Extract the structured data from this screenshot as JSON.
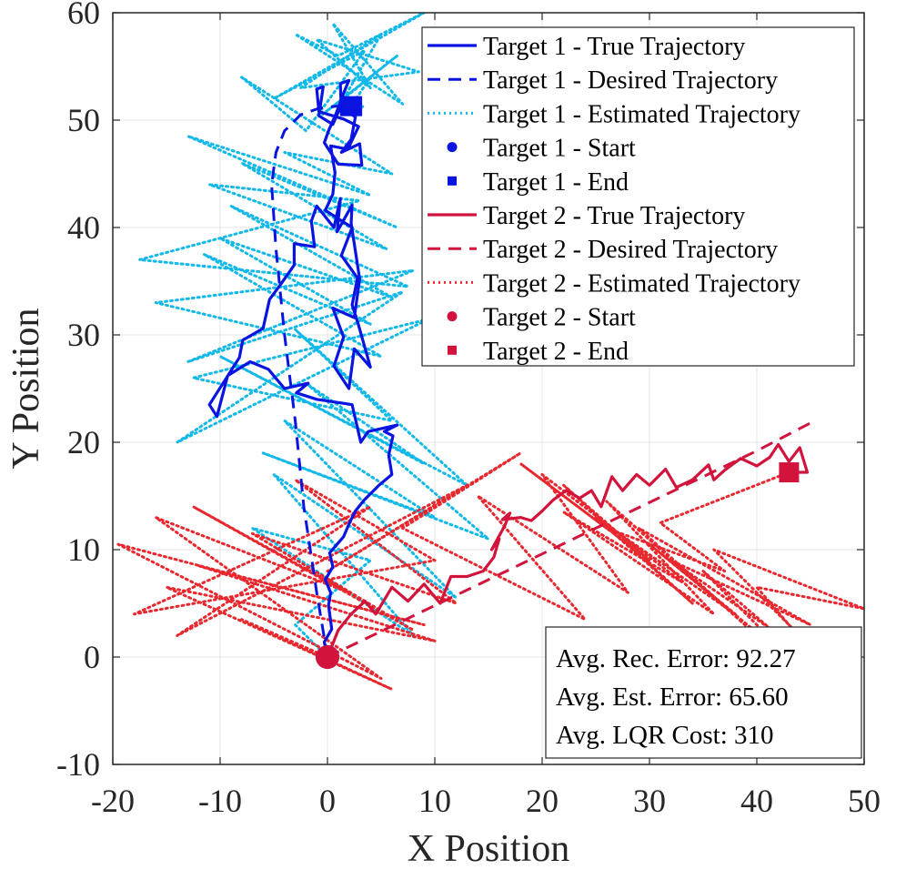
{
  "chart_data": {
    "type": "line",
    "xlabel": "X Position",
    "ylabel": "Y Position",
    "xlim": [
      -20,
      50
    ],
    "ylim": [
      -10,
      60
    ],
    "xticks": [
      -20,
      -10,
      0,
      10,
      20,
      30,
      40,
      50
    ],
    "yticks": [
      -10,
      0,
      10,
      20,
      30,
      40,
      50,
      60
    ],
    "grid": true,
    "legend_location": "top-right",
    "colors": {
      "target1": "#0a14e0",
      "target1_estimated": "#12b8e8",
      "target2": "#d2143c",
      "target2_estimated": "#e8282e"
    },
    "series": [
      {
        "name": "Target 1 - True Trajectory",
        "style": "solid",
        "color": "#0a14e0",
        "x": [
          0,
          -0.3,
          0.4,
          0.1,
          0.3,
          -0.2,
          0.5,
          0.2,
          1.5,
          2.1,
          2.6,
          3.4,
          4.8,
          6.0,
          5.7,
          6.1,
          5.3,
          6.5,
          3.8,
          3.1,
          2.3,
          -1.0,
          -2.9,
          -1.8,
          -4.0,
          -5.5,
          -7.2,
          -9.3,
          -10.3,
          -11.0,
          -8.2,
          -7.9,
          -6.0,
          -5.4,
          -4.3,
          -3.1,
          -3.1,
          -1.2,
          -1.5,
          -1.0,
          0.6,
          1.2,
          0.9,
          2.3,
          2.2,
          3.0,
          2.5,
          0.5,
          1.5,
          0.6,
          2.0,
          2.5,
          4.0,
          2.9,
          2.3,
          2.8,
          1.3,
          2.3,
          -0.2,
          0.5,
          0.7,
          0.3,
          1.9,
          2.9,
          1.5,
          -0.8,
          -1.0,
          -0.4,
          -0.8,
          0.5,
          1.2,
          2.6,
          2.2,
          1.3,
          3.0,
          3.2,
          1.0,
          -0.3,
          0.1,
          0.8,
          1.5,
          2.0,
          1.2,
          1.3,
          2.9,
          2.3
        ],
        "y": [
          0,
          1.4,
          2.6,
          4.8,
          6.0,
          7.2,
          8.4,
          9.7,
          11.2,
          12.6,
          13.6,
          14.6,
          16.0,
          17.0,
          18.8,
          20.6,
          21.0,
          21.6,
          21.0,
          20.0,
          23.5,
          24.0,
          24.6,
          25.5,
          25.0,
          26.8,
          27.5,
          26.2,
          22.4,
          23.5,
          27.9,
          29.5,
          30.6,
          33.3,
          34.8,
          36.5,
          38.5,
          38.2,
          40.6,
          42.0,
          40.0,
          42.7,
          39.6,
          42.1,
          40.4,
          35.2,
          31.6,
          32.5,
          29.8,
          27.1,
          25.0,
          28.7,
          27.0,
          30.9,
          32.8,
          35.3,
          37.4,
          40.0,
          41.6,
          43.1,
          45.1,
          47.6,
          47.3,
          49.4,
          50.1,
          50.8,
          52.9,
          53.1,
          50.4,
          49.6,
          51.2,
          50.3,
          48.2,
          47.0,
          47.8,
          45.8,
          45.9,
          47.9,
          49.0,
          50.6,
          52.5,
          53.7,
          53.4,
          50.5,
          51.4,
          51.3
        ]
      },
      {
        "name": "Target 1 - Desired Trajectory",
        "style": "dashed",
        "color": "#0a14e0",
        "x": [
          0,
          -1.0,
          -2.2,
          -3.0,
          -4.0,
          -4.8,
          -5.2,
          -4.8,
          -4.0,
          -2.5,
          -0.8,
          0.8,
          2.3
        ],
        "y": [
          0,
          6,
          14,
          22,
          30,
          38,
          44,
          47,
          49,
          50.5,
          51.1,
          51.3,
          51.3
        ]
      },
      {
        "name": "Target 1 - Estimated Trajectory",
        "style": "dotted",
        "color": "#12b8e8",
        "x": [
          0,
          -3.0,
          4.0,
          -7.0,
          8.0,
          -5.0,
          12.0,
          -4.0,
          10.0,
          -6.0,
          15.0,
          -2.0,
          9.0,
          -10.0,
          13.0,
          -3.0,
          6.0,
          -12.5,
          9.5,
          -14.0,
          7.0,
          -13.0,
          8.0,
          -16.0,
          5.0,
          -11.5,
          4.0,
          -10.0,
          6.0,
          -9.0,
          7.5,
          -17.5,
          3.0,
          -11.0,
          5.5,
          -8.0,
          6.5,
          -13.0,
          4.0,
          -4.0,
          6.0,
          -8.0,
          -2.0,
          3.5,
          -5.0,
          9.0,
          1.0,
          -3.0,
          7.0,
          0.5,
          4.0,
          -1.0,
          8.5,
          -2.5,
          5.0,
          1.5,
          6.5,
          -0.5,
          4.0,
          2.0,
          3.5
        ],
        "y": [
          0,
          3.0,
          9.0,
          12.0,
          2.0,
          17.0,
          5.5,
          22.0,
          13.0,
          19.0,
          11.0,
          25.5,
          18.0,
          28.0,
          16.0,
          30.5,
          22.0,
          26.0,
          31.5,
          20.0,
          34.0,
          27.5,
          36.0,
          33.0,
          28.0,
          37.5,
          31.0,
          39.0,
          33.5,
          42.0,
          34.5,
          37.0,
          42.5,
          44.0,
          38.0,
          46.0,
          40.0,
          48.5,
          43.0,
          47.0,
          45.0,
          54.0,
          49.0,
          56.5,
          52.0,
          60.0,
          56.0,
          58.0,
          51.5,
          59.0,
          53.0,
          57.5,
          54.5,
          53.0,
          58.0,
          52.0,
          56.0,
          50.5,
          54.0,
          51.0,
          51.3
        ]
      },
      {
        "name": "Target 1 - Start",
        "style": "marker-circle",
        "color": "#0a14e0",
        "x": [
          0
        ],
        "y": [
          0
        ]
      },
      {
        "name": "Target 1 - End",
        "style": "marker-square",
        "color": "#0a14e0",
        "x": [
          2.3
        ],
        "y": [
          51.3
        ]
      },
      {
        "name": "Target 2 - True Trajectory",
        "style": "solid",
        "color": "#d2143c",
        "x": [
          0,
          1.0,
          2.2,
          3.5,
          4.5,
          6.0,
          7.5,
          9.0,
          10.5,
          11.5,
          13.0,
          14.5,
          15.5,
          16.0,
          15.3,
          16.5,
          17.0,
          16.3,
          18.0,
          19.0,
          20.0,
          21.0,
          22.2,
          23.5,
          24.6,
          25.5,
          26.5,
          27.5,
          28.8,
          30.0,
          31.5,
          32.5,
          34.0,
          35.5,
          36.0,
          37.0,
          38.5,
          40.0,
          41.2,
          42.0,
          43.0,
          44.0,
          44.7,
          43.0
        ],
        "y": [
          0,
          2.5,
          4.0,
          5.2,
          4.0,
          6.5,
          5.2,
          6.8,
          5.0,
          7.5,
          7.5,
          8.0,
          9.3,
          11.0,
          10.0,
          12.2,
          13.4,
          12.8,
          13.0,
          12.7,
          13.6,
          14.6,
          15.5,
          14.8,
          15.5,
          14.0,
          16.8,
          15.5,
          17.0,
          16.0,
          17.5,
          15.8,
          16.5,
          17.9,
          16.5,
          17.4,
          18.5,
          17.8,
          18.6,
          19.8,
          18.2,
          19.5,
          17.2,
          17.2
        ]
      },
      {
        "name": "Target 2 - Desired Trajectory",
        "style": "dashed",
        "color": "#d2143c",
        "x": [
          0,
          5,
          10,
          15,
          20,
          25,
          30,
          35,
          40,
          45
        ],
        "y": [
          0,
          2.4,
          4.8,
          7.2,
          9.6,
          12.0,
          14.4,
          16.8,
          19.2,
          21.8
        ]
      },
      {
        "name": "Target 2 - Estimated Trajectory",
        "style": "dotted",
        "color": "#e8282e",
        "x": [
          0,
          -8.0,
          6.0,
          -15.0,
          10.0,
          -12.0,
          9.0,
          -19.5,
          5.0,
          -16.0,
          2.0,
          -12.5,
          8.0,
          -7.0,
          12.0,
          -3.0,
          10.0,
          -18.0,
          4.0,
          -14.0,
          13.0,
          0.0,
          18.0,
          7.0,
          24.0,
          14.0,
          28.0,
          20.0,
          33.0,
          22.0,
          36.0,
          26.0,
          40.0,
          29.0,
          45.0,
          32.0,
          48.0,
          36.0,
          50.0,
          40.0,
          49.0,
          35.0,
          44.0,
          30.0,
          38.0,
          25.0,
          34.0,
          22.0,
          30.0,
          18.0,
          26.0,
          37.0,
          31.0,
          43.0
        ],
        "y": [
          0,
          3.5,
          -3.0,
          6.5,
          1.5,
          8.5,
          3.0,
          10.5,
          -2.0,
          13.0,
          6.0,
          14.0,
          2.5,
          11.5,
          5.0,
          16.5,
          9.0,
          4.0,
          14.0,
          2.0,
          16.0,
          8.0,
          19.0,
          12.0,
          3.5,
          15.0,
          6.0,
          17.0,
          7.0,
          13.5,
          4.0,
          14.5,
          2.0,
          12.0,
          3.0,
          9.0,
          -2.0,
          10.0,
          4.5,
          6.5,
          -4.0,
          8.0,
          -1.0,
          10.5,
          4.0,
          13.0,
          5.0,
          16.0,
          9.0,
          18.0,
          12.0,
          8.0,
          12.5,
          17.2
        ]
      },
      {
        "name": "Target 2 - Start",
        "style": "marker-circle",
        "color": "#d2143c",
        "x": [
          0
        ],
        "y": [
          0
        ]
      },
      {
        "name": "Target 2 - End",
        "style": "marker-square",
        "color": "#d2143c",
        "x": [
          43
        ],
        "y": [
          17.2
        ]
      }
    ],
    "legend": [
      "Target 1 - True Trajectory",
      "Target 1 - Desired Trajectory",
      "Target 1 - Estimated Trajectory",
      "Target 1 - Start",
      "Target 1 - End",
      "Target 2 - True Trajectory",
      "Target 2 - Desired Trajectory",
      "Target 2 - Estimated Trajectory",
      "Target 2 - Start",
      "Target 2 - End"
    ],
    "annotations": [
      "Avg. Rec. Error: 92.27",
      "Avg. Est. Error: 65.60",
      "Avg. LQR Cost: 310"
    ]
  }
}
